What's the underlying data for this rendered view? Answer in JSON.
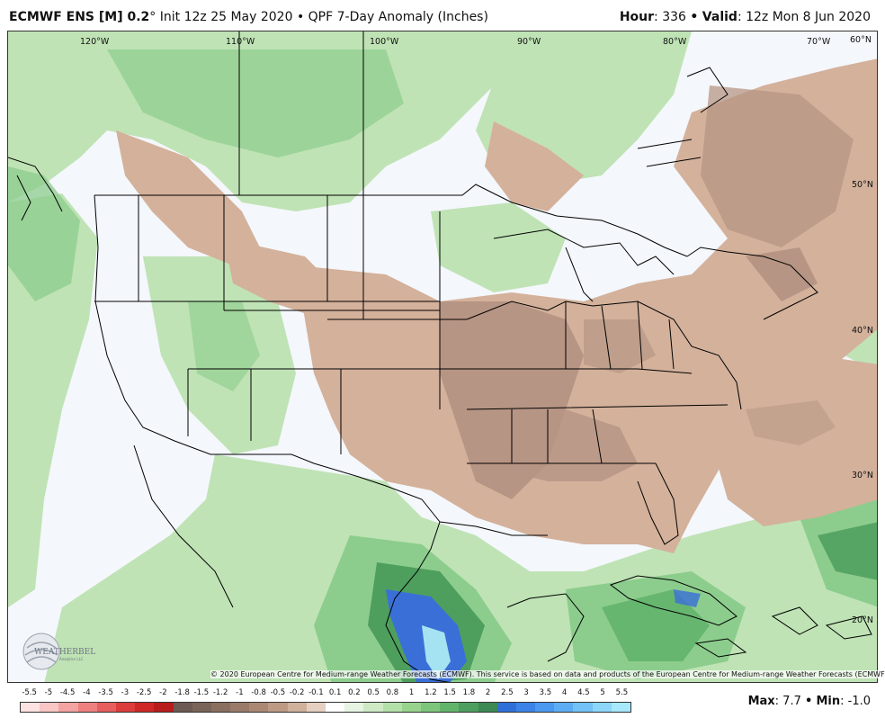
{
  "header": {
    "model": "ECMWF ENS [M] 0.2",
    "degree": "°",
    "init": "Init 12z 25 May 2020",
    "bullet": "•",
    "product": "QPF 7-Day Anomaly (Inches)",
    "hour_label": "Hour",
    "hour_value": ": 336",
    "valid_label": "Valid",
    "valid_value": ": 12z Mon 8 Jun 2020"
  },
  "map": {
    "longitude_labels": [
      "120°W",
      "110°W",
      "100°W",
      "90°W",
      "80°W",
      "70°W",
      "60°N"
    ],
    "latitude_labels": [
      "50°N",
      "40°N",
      "30°N",
      "20°N"
    ],
    "colors": {
      "deficit_brown": "#d3b19b",
      "deficit_dark": "#b79584",
      "surplus_light_green": "#bfe3b5",
      "surplus_green": "#8ccc8c",
      "surplus_dark_green": "#4e9e5e",
      "surplus_blue": "#3a6fd8",
      "surplus_light_blue": "#a6e3f2",
      "neutral": "#f4f7fb"
    }
  },
  "credit": "© 2020 European Centre for Medium-range Weather Forecasts (ECMWF). This service is based on data and products of the European Centre for Medium-range Weather Forecasts (ECMWF).",
  "logo": {
    "text": "WEATHERBELL",
    "subtext": "Analytics LLC"
  },
  "colorbar": {
    "labels": [
      "-5.5",
      "-5",
      "-4.5",
      "-4",
      "-3.5",
      "-3",
      "-2.5",
      "-2",
      "-1.8",
      "-1.5",
      "-1.2",
      "-1",
      "-0.8",
      "-0.5",
      "-0.2",
      "-0.1",
      "0.1",
      "0.2",
      "0.5",
      "0.8",
      "1",
      "1.2",
      "1.5",
      "1.8",
      "2",
      "2.5",
      "3",
      "3.5",
      "4",
      "4.5",
      "5",
      "5.5"
    ],
    "colors": [
      "#fde2e2",
      "#f9c6c6",
      "#f4a3a3",
      "#ee8080",
      "#e65e5e",
      "#dc3c3c",
      "#cf2626",
      "#b81c1c",
      "#6e5a55",
      "#7a6358",
      "#8a6f60",
      "#9a7b6a",
      "#aa8874",
      "#bc9a84",
      "#cfb19c",
      "#e5cfc0",
      "#ffffff",
      "#e6f5e1",
      "#cdeac4",
      "#b3dfa8",
      "#98d38d",
      "#7cc57a",
      "#62b46b",
      "#4d9f5f",
      "#3e8a55",
      "#2f6fd8",
      "#3b83e6",
      "#4a98ef",
      "#5cadf4",
      "#72c2f7",
      "#8cd6f9",
      "#a8e8fb"
    ]
  },
  "maxmin": {
    "max_label": "Max",
    "max_value": ": 7.7",
    "sep": "•",
    "min_label": "Min",
    "min_value": ": -1.0"
  }
}
